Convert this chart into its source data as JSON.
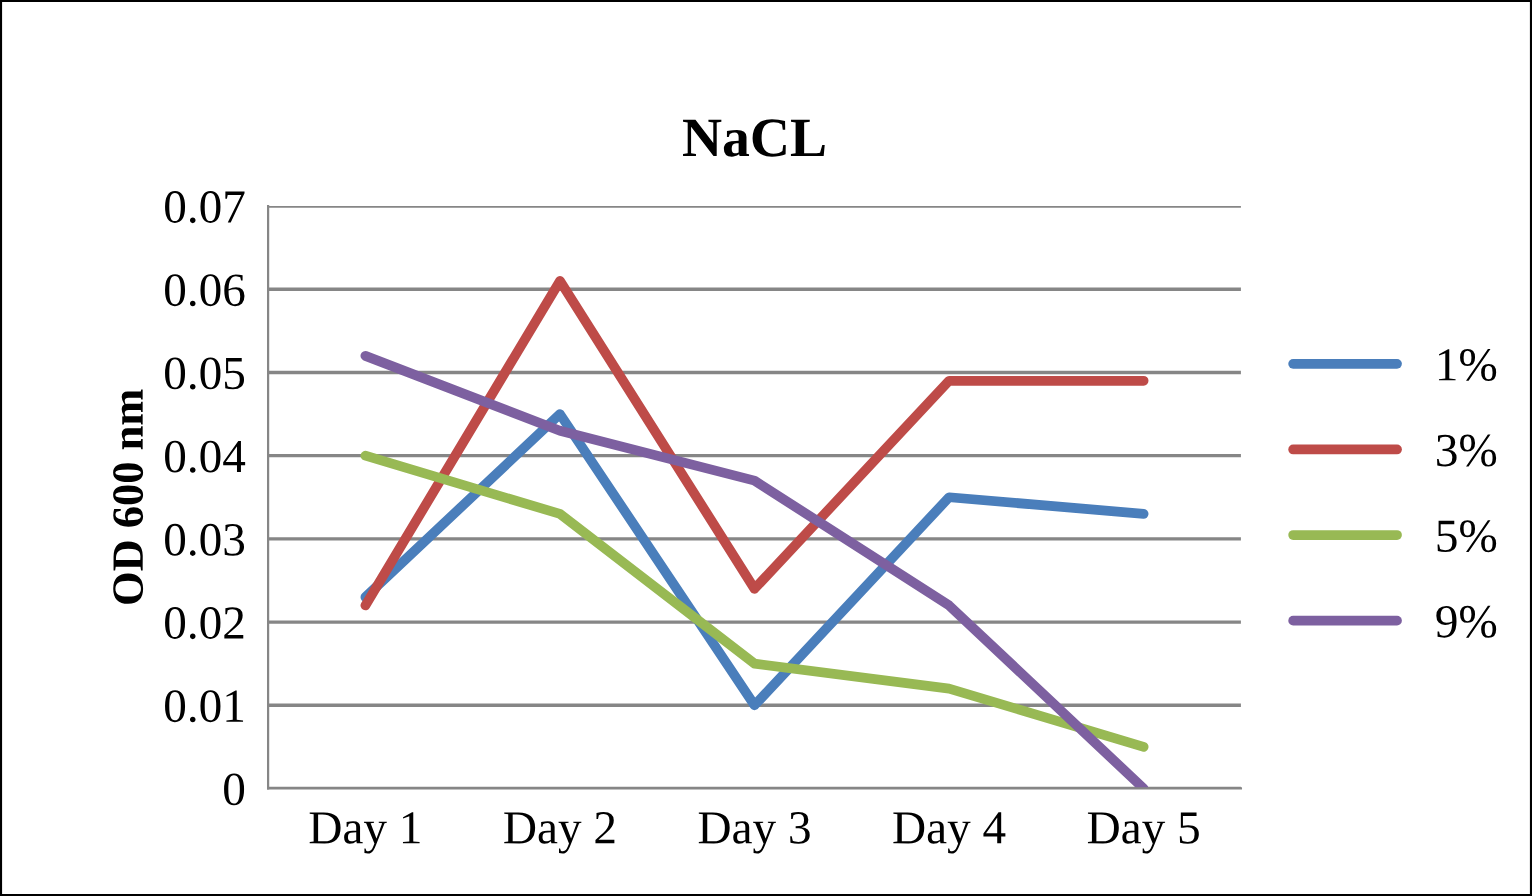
{
  "chart_data": {
    "type": "line",
    "title": "NaCL",
    "ylabel": "OD 600 nm",
    "categories": [
      "Day 1",
      "Day 2",
      "Day 3",
      "Day 4",
      "Day 5"
    ],
    "series": [
      {
        "name": "1%",
        "color": "#4a7ebb",
        "values": [
          0.023,
          0.045,
          0.01,
          0.035,
          0.033
        ]
      },
      {
        "name": "3%",
        "color": "#be4b48",
        "values": [
          0.022,
          0.061,
          0.024,
          0.049,
          0.049
        ]
      },
      {
        "name": "5%",
        "color": "#98b954",
        "values": [
          0.04,
          0.033,
          0.015,
          0.012,
          0.005
        ]
      },
      {
        "name": "9%",
        "color": "#7d60a0",
        "values": [
          0.052,
          0.043,
          0.037,
          0.022,
          0.0
        ]
      }
    ],
    "ylim": [
      0,
      0.07
    ],
    "yticks": [
      0,
      0.01,
      0.02,
      0.03,
      0.04,
      0.05,
      0.06,
      0.07
    ],
    "grid": "y",
    "legend": "right",
    "marker": "none",
    "line_style": "solid"
  }
}
